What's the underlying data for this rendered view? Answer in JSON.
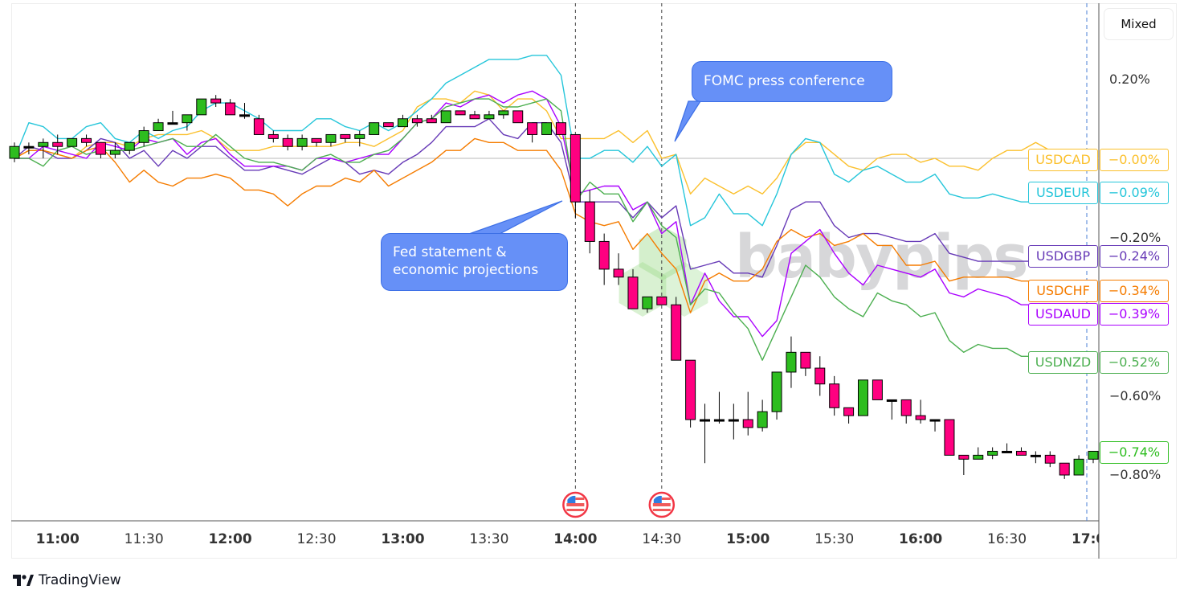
{
  "toolbar": {
    "scale_mode_label": "Mixed"
  },
  "branding": {
    "logo_text": "TradingView",
    "watermark": "babypips"
  },
  "annotations": {
    "fed_statement": "Fed statement & economic projections",
    "fomc_press": "FOMC press conference",
    "event_icons": [
      "us-flag-icon",
      "us-flag-icon"
    ]
  },
  "colors": {
    "up_candle": "#2dbd1f",
    "down_candle": "#ff0080",
    "USDCAD": "#fbc02d",
    "USDEUR": "#26c6da",
    "USDGBP": "#673ab7",
    "USDCHF": "#f57c00",
    "USDAUD": "#aa00ff",
    "USDNZD": "#4caf50",
    "callout": "#6690f7"
  },
  "chart_data": {
    "type": "candlestick+line",
    "interval": "5m",
    "xlabel": "",
    "ylabel": "",
    "ylim": [
      -1.0,
      0.38
    ],
    "y_ticks": [
      "0.20%",
      "-0.20%",
      "-0.60%",
      "-0.80%"
    ],
    "x_ticks": [
      {
        "label": "11:00",
        "time": "11:00",
        "major": true
      },
      {
        "label": "11:30",
        "time": "11:30",
        "major": false
      },
      {
        "label": "12:00",
        "time": "12:00",
        "major": true
      },
      {
        "label": "12:30",
        "time": "12:30",
        "major": false
      },
      {
        "label": "13:00",
        "time": "13:00",
        "major": true
      },
      {
        "label": "13:30",
        "time": "13:30",
        "major": false
      },
      {
        "label": "14:00",
        "time": "14:00",
        "major": true
      },
      {
        "label": "14:30",
        "time": "14:30",
        "major": false
      },
      {
        "label": "15:00",
        "time": "15:00",
        "major": true
      },
      {
        "label": "15:30",
        "time": "15:30",
        "major": false
      },
      {
        "label": "16:00",
        "time": "16:00",
        "major": true
      },
      {
        "label": "16:30",
        "time": "16:30",
        "major": false
      },
      {
        "label": "17:00",
        "time": "17:00",
        "major": true
      }
    ],
    "event_lines": [
      "14:00",
      "14:30"
    ],
    "current_time_line": "16:55",
    "baseline": 0,
    "start_time": "10:45",
    "candles_ohlc": [
      [
        0.0,
        0.04,
        -0.01,
        0.03
      ],
      [
        0.03,
        0.04,
        0.01,
        0.03
      ],
      [
        0.03,
        0.05,
        0.0,
        0.04
      ],
      [
        0.04,
        0.06,
        0.01,
        0.03
      ],
      [
        0.03,
        0.05,
        0.03,
        0.05
      ],
      [
        0.05,
        0.06,
        0.03,
        0.04
      ],
      [
        0.04,
        0.04,
        0.0,
        0.01
      ],
      [
        0.01,
        0.04,
        0.0,
        0.02
      ],
      [
        0.02,
        0.04,
        0.01,
        0.04
      ],
      [
        0.04,
        0.08,
        0.03,
        0.07
      ],
      [
        0.07,
        0.1,
        0.07,
        0.09
      ],
      [
        0.09,
        0.12,
        0.09,
        0.09
      ],
      [
        0.09,
        0.11,
        0.07,
        0.11
      ],
      [
        0.11,
        0.15,
        0.11,
        0.15
      ],
      [
        0.15,
        0.16,
        0.13,
        0.14
      ],
      [
        0.14,
        0.15,
        0.11,
        0.11
      ],
      [
        0.11,
        0.14,
        0.1,
        0.11
      ],
      [
        0.1,
        0.11,
        0.06,
        0.06
      ],
      [
        0.06,
        0.07,
        0.04,
        0.05
      ],
      [
        0.05,
        0.06,
        0.02,
        0.03
      ],
      [
        0.03,
        0.06,
        0.02,
        0.05
      ],
      [
        0.05,
        0.05,
        0.03,
        0.04
      ],
      [
        0.04,
        0.06,
        0.03,
        0.06
      ],
      [
        0.06,
        0.06,
        0.04,
        0.05
      ],
      [
        0.05,
        0.07,
        0.03,
        0.06
      ],
      [
        0.06,
        0.09,
        0.06,
        0.09
      ],
      [
        0.09,
        0.09,
        0.08,
        0.08
      ],
      [
        0.08,
        0.11,
        0.08,
        0.1
      ],
      [
        0.1,
        0.11,
        0.08,
        0.09
      ],
      [
        0.1,
        0.11,
        0.09,
        0.09
      ],
      [
        0.09,
        0.12,
        0.09,
        0.12
      ],
      [
        0.12,
        0.12,
        0.11,
        0.11
      ],
      [
        0.11,
        0.12,
        0.1,
        0.1
      ],
      [
        0.1,
        0.12,
        0.1,
        0.11
      ],
      [
        0.11,
        0.12,
        0.1,
        0.12
      ],
      [
        0.12,
        0.12,
        0.09,
        0.09
      ],
      [
        0.09,
        0.09,
        0.04,
        0.06
      ],
      [
        0.06,
        0.09,
        0.06,
        0.09
      ],
      [
        0.09,
        0.09,
        0.06,
        0.06
      ],
      [
        0.06,
        0.06,
        -0.15,
        -0.11
      ],
      [
        -0.11,
        -0.08,
        -0.24,
        -0.21
      ],
      [
        -0.21,
        -0.19,
        -0.32,
        -0.28
      ],
      [
        -0.28,
        -0.24,
        -0.32,
        -0.3
      ],
      [
        -0.3,
        -0.28,
        -0.38,
        -0.38
      ],
      [
        -0.38,
        -0.35,
        -0.39,
        -0.35
      ],
      [
        -0.35,
        -0.35,
        -0.37,
        -0.37
      ],
      [
        -0.37,
        -0.35,
        -0.51,
        -0.51
      ],
      [
        -0.51,
        -0.51,
        -0.68,
        -0.66
      ],
      [
        -0.66,
        -0.62,
        -0.77,
        -0.66
      ],
      [
        -0.66,
        -0.59,
        -0.67,
        -0.66
      ],
      [
        -0.66,
        -0.62,
        -0.71,
        -0.66
      ],
      [
        -0.66,
        -0.59,
        -0.7,
        -0.68
      ],
      [
        -0.68,
        -0.61,
        -0.69,
        -0.64
      ],
      [
        -0.64,
        -0.54,
        -0.66,
        -0.54
      ],
      [
        -0.54,
        -0.45,
        -0.58,
        -0.49
      ],
      [
        -0.49,
        -0.49,
        -0.55,
        -0.53
      ],
      [
        -0.53,
        -0.5,
        -0.6,
        -0.57
      ],
      [
        -0.57,
        -0.55,
        -0.65,
        -0.63
      ],
      [
        -0.63,
        -0.63,
        -0.67,
        -0.65
      ],
      [
        -0.65,
        -0.56,
        -0.65,
        -0.56
      ],
      [
        -0.56,
        -0.56,
        -0.61,
        -0.61
      ],
      [
        -0.61,
        -0.61,
        -0.66,
        -0.61
      ],
      [
        -0.61,
        -0.61,
        -0.67,
        -0.65
      ],
      [
        -0.65,
        -0.61,
        -0.67,
        -0.66
      ],
      [
        -0.66,
        -0.66,
        -0.69,
        -0.66
      ],
      [
        -0.66,
        -0.66,
        -0.75,
        -0.75
      ],
      [
        -0.75,
        -0.75,
        -0.8,
        -0.76
      ],
      [
        -0.76,
        -0.73,
        -0.76,
        -0.75
      ],
      [
        -0.75,
        -0.73,
        -0.76,
        -0.74
      ],
      [
        -0.74,
        -0.72,
        -0.74,
        -0.74
      ],
      [
        -0.74,
        -0.73,
        -0.75,
        -0.75
      ],
      [
        -0.75,
        -0.74,
        -0.77,
        -0.75
      ],
      [
        -0.75,
        -0.74,
        -0.78,
        -0.77
      ],
      [
        -0.77,
        -0.77,
        -0.81,
        -0.8
      ],
      [
        -0.8,
        -0.75,
        -0.8,
        -0.76
      ],
      [
        -0.76,
        -0.74,
        -0.77,
        -0.74
      ]
    ],
    "candle_last_value": "−0.74%",
    "series": [
      {
        "name": "USDCAD",
        "last_value": "−0.00%",
        "values": [
          0.0,
          0.02,
          0.02,
          0.01,
          0.0,
          0.03,
          0.04,
          0.04,
          0.03,
          0.05,
          0.06,
          0.06,
          0.06,
          0.07,
          0.05,
          0.02,
          0.02,
          0.02,
          0.03,
          0.03,
          0.03,
          0.03,
          0.03,
          0.04,
          0.04,
          0.03,
          0.05,
          0.07,
          0.13,
          0.15,
          0.15,
          0.14,
          0.17,
          0.16,
          0.12,
          0.15,
          0.15,
          0.12,
          0.05,
          0.05,
          0.05,
          0.05,
          0.07,
          0.04,
          0.07,
          0.0,
          0.01,
          -0.09,
          -0.05,
          -0.07,
          -0.09,
          -0.07,
          -0.09,
          -0.05,
          0.01,
          0.04,
          0.04,
          0.01,
          -0.02,
          -0.03,
          0.0,
          0.01,
          0.01,
          -0.01,
          0.0,
          -0.02,
          -0.02,
          -0.03,
          0.0,
          0.02,
          0.02,
          0.04,
          0.02,
          0.01,
          0.0,
          0.0
        ]
      },
      {
        "name": "USDEUR",
        "last_value": "−0.09%",
        "values": [
          0.0,
          0.09,
          0.08,
          0.05,
          0.05,
          0.08,
          0.09,
          0.05,
          0.04,
          0.07,
          0.05,
          0.07,
          0.08,
          0.12,
          0.14,
          0.14,
          0.12,
          0.1,
          0.07,
          0.07,
          0.07,
          0.1,
          0.1,
          0.08,
          0.07,
          0.09,
          0.07,
          0.09,
          0.12,
          0.15,
          0.19,
          0.21,
          0.23,
          0.25,
          0.25,
          0.25,
          0.26,
          0.26,
          0.21,
          0.0,
          0.0,
          0.02,
          0.02,
          -0.01,
          0.03,
          -0.02,
          0.01,
          -0.17,
          -0.15,
          -0.09,
          -0.14,
          -0.14,
          -0.17,
          -0.09,
          0.01,
          0.05,
          0.04,
          -0.04,
          -0.06,
          -0.03,
          -0.02,
          -0.04,
          -0.06,
          -0.06,
          -0.04,
          -0.09,
          -0.1,
          -0.1,
          -0.09,
          -0.1,
          -0.11,
          -0.11,
          -0.1,
          -0.1,
          -0.09,
          -0.09
        ]
      },
      {
        "name": "USDGBP",
        "last_value": "−0.24%",
        "values": [
          0.0,
          0.03,
          0.02,
          0.0,
          0.0,
          0.02,
          0.05,
          0.04,
          0.0,
          0.02,
          -0.02,
          0.02,
          0.0,
          0.03,
          0.03,
          0.0,
          -0.03,
          -0.03,
          -0.02,
          -0.03,
          -0.04,
          -0.02,
          0.0,
          -0.01,
          -0.04,
          -0.03,
          -0.04,
          -0.01,
          0.01,
          0.04,
          0.08,
          0.08,
          0.08,
          0.1,
          0.06,
          0.05,
          0.09,
          0.09,
          0.04,
          -0.11,
          -0.11,
          -0.11,
          -0.11,
          -0.15,
          -0.11,
          -0.15,
          -0.12,
          -0.28,
          -0.27,
          -0.26,
          -0.29,
          -0.29,
          -0.3,
          -0.22,
          -0.13,
          -0.11,
          -0.11,
          -0.17,
          -0.2,
          -0.19,
          -0.19,
          -0.2,
          -0.21,
          -0.21,
          -0.19,
          -0.24,
          -0.25,
          -0.26,
          -0.26,
          -0.26,
          -0.26,
          -0.26,
          -0.25,
          -0.25,
          -0.25,
          -0.24
        ]
      },
      {
        "name": "USDCHF",
        "last_value": "−0.34%",
        "values": [
          0.0,
          0.02,
          0.02,
          0.01,
          0.0,
          0.02,
          0.03,
          -0.01,
          -0.06,
          -0.03,
          -0.06,
          -0.07,
          -0.05,
          -0.05,
          -0.04,
          -0.05,
          -0.08,
          -0.08,
          -0.09,
          -0.12,
          -0.09,
          -0.07,
          -0.07,
          -0.05,
          -0.06,
          -0.03,
          -0.07,
          -0.05,
          -0.03,
          -0.01,
          0.02,
          0.02,
          0.05,
          0.04,
          0.04,
          0.02,
          0.02,
          0.02,
          -0.03,
          -0.14,
          -0.16,
          -0.17,
          -0.16,
          -0.23,
          -0.19,
          -0.24,
          -0.28,
          -0.39,
          -0.31,
          -0.29,
          -0.31,
          -0.31,
          -0.28,
          -0.21,
          -0.18,
          -0.2,
          -0.19,
          -0.22,
          -0.21,
          -0.19,
          -0.22,
          -0.22,
          -0.27,
          -0.27,
          -0.26,
          -0.31,
          -0.3,
          -0.3,
          -0.3,
          -0.3,
          -0.31,
          -0.31,
          -0.32,
          -0.33,
          -0.33,
          -0.34
        ]
      },
      {
        "name": "USDAUD",
        "last_value": "−0.39%",
        "values": [
          0.0,
          0.0,
          0.03,
          0.02,
          0.01,
          0.0,
          0.04,
          0.03,
          0.02,
          0.05,
          0.04,
          0.05,
          0.01,
          0.04,
          0.05,
          0.01,
          -0.02,
          -0.02,
          -0.02,
          -0.02,
          -0.03,
          0.0,
          0.0,
          -0.01,
          0.0,
          0.01,
          0.01,
          0.05,
          0.09,
          0.1,
          0.14,
          0.13,
          0.15,
          0.16,
          0.14,
          0.16,
          0.17,
          0.15,
          0.08,
          -0.09,
          -0.08,
          -0.07,
          -0.07,
          -0.13,
          -0.11,
          -0.19,
          -0.16,
          -0.37,
          -0.29,
          -0.36,
          -0.4,
          -0.4,
          -0.45,
          -0.41,
          -0.24,
          -0.21,
          -0.18,
          -0.24,
          -0.29,
          -0.32,
          -0.27,
          -0.28,
          -0.29,
          -0.3,
          -0.28,
          -0.34,
          -0.35,
          -0.33,
          -0.34,
          -0.35,
          -0.37,
          -0.37,
          -0.38,
          -0.38,
          -0.39,
          -0.39
        ]
      },
      {
        "name": "USDNZD",
        "last_value": "−0.52%",
        "values": [
          0.0,
          0.0,
          -0.02,
          0.02,
          0.03,
          0.01,
          0.02,
          0.02,
          0.02,
          0.03,
          0.04,
          0.05,
          0.03,
          0.03,
          0.06,
          0.03,
          0.0,
          -0.01,
          -0.01,
          -0.02,
          -0.03,
          0.0,
          0.01,
          -0.01,
          -0.01,
          0.01,
          0.02,
          0.05,
          0.09,
          0.1,
          0.13,
          0.14,
          0.15,
          0.15,
          0.13,
          0.13,
          0.14,
          0.15,
          0.12,
          -0.11,
          -0.06,
          -0.09,
          -0.09,
          -0.16,
          -0.11,
          -0.17,
          -0.2,
          -0.37,
          -0.33,
          -0.34,
          -0.39,
          -0.43,
          -0.51,
          -0.43,
          -0.35,
          -0.27,
          -0.3,
          -0.35,
          -0.38,
          -0.4,
          -0.34,
          -0.36,
          -0.37,
          -0.4,
          -0.39,
          -0.46,
          -0.49,
          -0.47,
          -0.48,
          -0.48,
          -0.5,
          -0.5,
          -0.51,
          -0.51,
          -0.52,
          -0.52
        ]
      }
    ]
  }
}
